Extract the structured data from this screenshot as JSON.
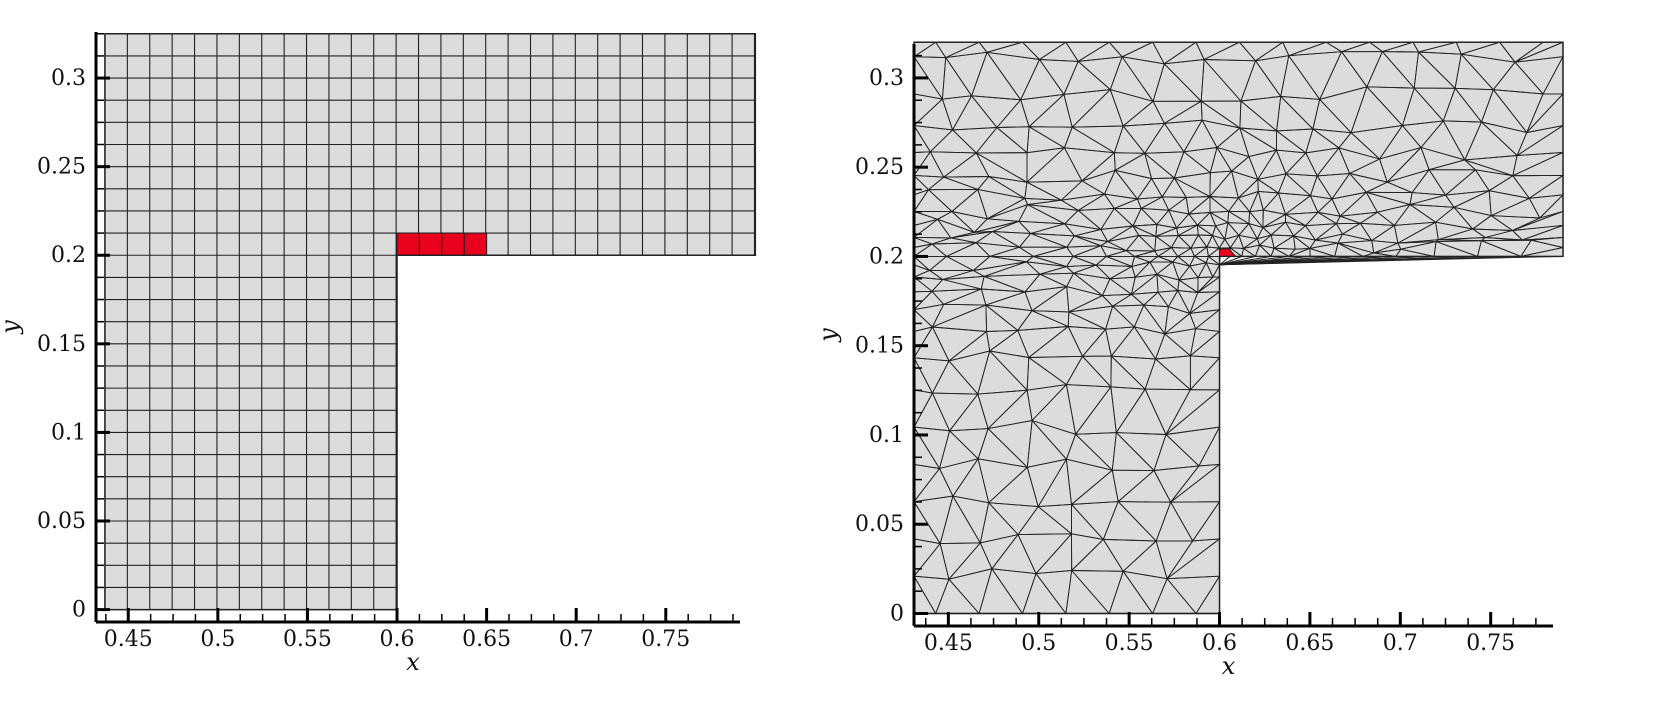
{
  "colors": {
    "mesh_fill": "#dcdcdc",
    "mesh_line": "#222222",
    "highlight": "#e8001c",
    "axis": "#000000"
  },
  "panels": [
    {
      "id": "structured",
      "mesh_type": "quad",
      "xlabel": "x",
      "ylabel": "y",
      "xlim": [
        0.432,
        0.797
      ],
      "ylim": [
        -0.007,
        0.326
      ],
      "xticks": [
        0.45,
        0.5,
        0.55,
        0.6,
        0.65,
        0.7,
        0.75
      ],
      "yticks": [
        0,
        0.05,
        0.1,
        0.15,
        0.2,
        0.25,
        0.3
      ],
      "tick_labels_x": [
        "0.45",
        "0.5",
        "0.55",
        "0.6",
        "0.65",
        "0.7",
        "0.75"
      ],
      "tick_labels_y": [
        "0",
        "0.05",
        "0.1",
        "0.15",
        "0.2",
        "0.25",
        "0.3"
      ],
      "domain": {
        "x0": 0.437,
        "x_step": 0.6,
        "x1": 0.8,
        "y_step": 0.2,
        "y1": 0.325
      },
      "cell_size": 0.0125,
      "highlight_cells": [
        [
          0.6,
          0.2
        ],
        [
          0.6125,
          0.2
        ],
        [
          0.625,
          0.2
        ],
        [
          0.6375,
          0.2
        ]
      ]
    },
    {
      "id": "unstructured",
      "mesh_type": "triangle",
      "xlabel": "x",
      "ylabel": "y",
      "xlim": [
        0.431,
        0.79
      ],
      "ylim": [
        -0.007,
        0.319
      ],
      "xticks": [
        0.45,
        0.5,
        0.55,
        0.6,
        0.65,
        0.7,
        0.75
      ],
      "yticks": [
        0,
        0.05,
        0.1,
        0.15,
        0.2,
        0.25,
        0.3
      ],
      "tick_labels_x": [
        "0.45",
        "0.5",
        "0.55",
        "0.6",
        "0.65",
        "0.7",
        "0.75"
      ],
      "tick_labels_y": [
        "0",
        "0.05",
        "0.1",
        "0.15",
        "0.2",
        "0.25",
        "0.3"
      ],
      "domain": {
        "x0": 0.431,
        "x_step": 0.6,
        "x1": 0.79,
        "y_step": 0.2,
        "y1": 0.32
      },
      "refine_center": [
        0.6,
        0.2
      ],
      "highlight_cells": [
        [
          0.6,
          0.2
        ]
      ]
    }
  ]
}
